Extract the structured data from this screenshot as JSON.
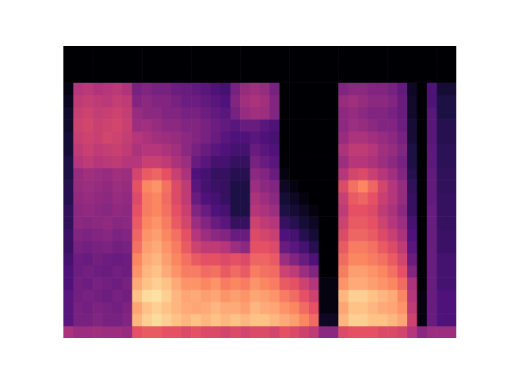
{
  "chart_data": {
    "type": "heatmap",
    "tick_labels": false,
    "xlim": [
      0,
      40
    ],
    "ylim": [
      0,
      24
    ],
    "zlim": [
      -80,
      0
    ],
    "values": [
      [
        -42,
        -45,
        -45,
        -44,
        -45,
        -45,
        -46,
        -30,
        -28,
        -28,
        -30,
        -30,
        -32,
        -30,
        -32,
        -32,
        -34,
        -32,
        -34,
        -32,
        -32,
        -34,
        -30,
        -32,
        -35,
        -38,
        -48,
        -48,
        -32,
        -30,
        -30,
        -30,
        -32,
        -32,
        -34,
        -40,
        -48,
        -45,
        -45,
        -45
      ],
      [
        -58,
        -52,
        -52,
        -50,
        -52,
        -52,
        -50,
        -12,
        -8,
        -6,
        -8,
        -10,
        -12,
        -10,
        -12,
        -10,
        -12,
        -10,
        -12,
        -10,
        -10,
        -12,
        -14,
        -16,
        -20,
        -25,
        -75,
        -75,
        -12,
        -8,
        -8,
        -10,
        -10,
        -12,
        -15,
        -35,
        -78,
        -55,
        -60,
        -60
      ],
      [
        -58,
        -52,
        -53,
        -51,
        -52,
        -53,
        -51,
        -15,
        -10,
        -8,
        -10,
        -12,
        -14,
        -15,
        -14,
        -12,
        -14,
        -14,
        -16,
        -12,
        -14,
        -15,
        -18,
        -20,
        -25,
        -30,
        -78,
        -78,
        -15,
        -10,
        -10,
        -12,
        -14,
        -15,
        -18,
        -38,
        -78,
        -55,
        -60,
        -60
      ],
      [
        -58,
        -53,
        -52,
        -53,
        -54,
        -52,
        -53,
        -10,
        -6,
        -5,
        -8,
        -12,
        -15,
        -14,
        -16,
        -15,
        -18,
        -16,
        -18,
        -15,
        -16,
        -18,
        -22,
        -25,
        -30,
        -35,
        -78,
        -78,
        -12,
        -8,
        -8,
        -10,
        -12,
        -14,
        -20,
        -40,
        -78,
        -55,
        -60,
        -60
      ],
      [
        -60,
        -53,
        -54,
        -52,
        -53,
        -54,
        -52,
        -14,
        -10,
        -8,
        -10,
        -14,
        -18,
        -18,
        -20,
        -18,
        -22,
        -20,
        -22,
        -18,
        -20,
        -22,
        -28,
        -30,
        -35,
        -40,
        -78,
        -78,
        -18,
        -14,
        -14,
        -16,
        -18,
        -20,
        -25,
        -42,
        -80,
        -55,
        -62,
        -62
      ],
      [
        -60,
        -54,
        -53,
        -54,
        -55,
        -53,
        -54,
        -18,
        -12,
        -10,
        -14,
        -18,
        -22,
        -22,
        -25,
        -24,
        -28,
        -25,
        -28,
        -22,
        -24,
        -25,
        -35,
        -38,
        -45,
        -50,
        -80,
        -80,
        -22,
        -16,
        -16,
        -18,
        -20,
        -24,
        -30,
        -50,
        -80,
        -55,
        -62,
        -62
      ],
      [
        -62,
        -54,
        -55,
        -53,
        -54,
        -55,
        -54,
        -20,
        -14,
        -12,
        -16,
        -20,
        -24,
        -28,
        -30,
        -30,
        -32,
        -30,
        -32,
        -26,
        -26,
        -28,
        -45,
        -50,
        -55,
        -60,
        -80,
        -80,
        -25,
        -20,
        -20,
        -22,
        -24,
        -28,
        -34,
        -55,
        -80,
        -55,
        -62,
        -62
      ],
      [
        -64,
        -52,
        -53,
        -52,
        -51,
        -53,
        -52,
        -24,
        -16,
        -14,
        -18,
        -22,
        -28,
        -35,
        -38,
        -38,
        -40,
        -45,
        -48,
        -30,
        -30,
        -32,
        -55,
        -58,
        -62,
        -68,
        -80,
        -80,
        -28,
        -22,
        -22,
        -24,
        -28,
        -32,
        -38,
        -58,
        -80,
        -55,
        -64,
        -64
      ],
      [
        -64,
        -50,
        -51,
        -50,
        -49,
        -51,
        -50,
        -26,
        -18,
        -16,
        -20,
        -24,
        -30,
        -40,
        -45,
        -48,
        -50,
        -55,
        -55,
        -32,
        -34,
        -36,
        -60,
        -62,
        -68,
        -72,
        -80,
        -80,
        -32,
        -26,
        -26,
        -28,
        -32,
        -36,
        -42,
        -60,
        -80,
        -55,
        -64,
        -64
      ],
      [
        -66,
        -48,
        -49,
        -48,
        -47,
        -49,
        -48,
        -28,
        -20,
        -18,
        -22,
        -28,
        -34,
        -45,
        -50,
        -55,
        -58,
        -65,
        -65,
        -35,
        -38,
        -40,
        -65,
        -68,
        -72,
        -75,
        -80,
        -80,
        -35,
        -28,
        -28,
        -30,
        -35,
        -40,
        -45,
        -62,
        -80,
        -55,
        -65,
        -65
      ],
      [
        -66,
        -48,
        -47,
        -48,
        -49,
        -47,
        -48,
        -30,
        -22,
        -20,
        -24,
        -30,
        -36,
        -50,
        -55,
        -60,
        -62,
        -70,
        -70,
        -40,
        -42,
        -45,
        -70,
        -72,
        -75,
        -78,
        -80,
        -80,
        -38,
        -30,
        -30,
        -32,
        -38,
        -42,
        -48,
        -65,
        -80,
        -55,
        -65,
        -65
      ],
      [
        -68,
        -47,
        -46,
        -47,
        -48,
        -46,
        -47,
        -32,
        -22,
        -20,
        -25,
        -32,
        -38,
        -55,
        -60,
        -62,
        -65,
        -70,
        -70,
        -42,
        -45,
        -48,
        -72,
        -75,
        -78,
        -80,
        -80,
        -80,
        -36,
        -28,
        -26,
        -30,
        -36,
        -40,
        -46,
        -65,
        -80,
        -56,
        -65,
        -65
      ],
      [
        -68,
        -46,
        -45,
        -46,
        -47,
        -45,
        -46,
        -30,
        -20,
        -18,
        -24,
        -32,
        -38,
        -58,
        -62,
        -64,
        -65,
        -70,
        -70,
        -45,
        -48,
        -50,
        -75,
        -78,
        -80,
        -80,
        -80,
        -80,
        -32,
        -24,
        -20,
        -26,
        -34,
        -40,
        -46,
        -66,
        -80,
        -56,
        -66,
        -66
      ],
      [
        -70,
        -46,
        -44,
        -45,
        -46,
        -44,
        -45,
        -34,
        -28,
        -26,
        -30,
        -36,
        -42,
        -60,
        -62,
        -65,
        -65,
        -68,
        -68,
        -48,
        -50,
        -55,
        -78,
        -80,
        -80,
        -80,
        -80,
        -80,
        -40,
        -34,
        -32,
        -36,
        -40,
        -44,
        -50,
        -68,
        -80,
        -56,
        -66,
        -66
      ],
      [
        -70,
        -40,
        -38,
        -40,
        -39,
        -38,
        -40,
        -40,
        -36,
        -36,
        -38,
        -42,
        -45,
        -55,
        -58,
        -62,
        -62,
        -65,
        -65,
        -52,
        -55,
        -58,
        -80,
        -80,
        -80,
        -80,
        -80,
        -80,
        -45,
        -40,
        -40,
        -42,
        -45,
        -48,
        -52,
        -70,
        -80,
        -57,
        -67,
        -67
      ],
      [
        -72,
        -38,
        -36,
        -38,
        -37,
        -36,
        -38,
        -42,
        -40,
        -40,
        -42,
        -44,
        -48,
        -52,
        -55,
        -58,
        -60,
        -62,
        -62,
        -55,
        -58,
        -60,
        -80,
        -80,
        -80,
        -80,
        -80,
        -80,
        -42,
        -38,
        -38,
        -40,
        -44,
        -46,
        -50,
        -70,
        -80,
        -57,
        -67,
        -67
      ],
      [
        -72,
        -36,
        -35,
        -36,
        -34,
        -35,
        -37,
        -40,
        -42,
        -44,
        -45,
        -46,
        -48,
        -50,
        -52,
        -55,
        -58,
        -60,
        -60,
        -58,
        -60,
        -62,
        -80,
        -80,
        -80,
        -80,
        -80,
        -80,
        -46,
        -42,
        -42,
        -44,
        -46,
        -48,
        -52,
        -72,
        -80,
        -58,
        -68,
        -68
      ],
      [
        -74,
        -35,
        -34,
        -36,
        -35,
        -34,
        -36,
        -45,
        -44,
        -46,
        -48,
        -48,
        -50,
        -50,
        -52,
        -54,
        -56,
        -58,
        -55,
        -55,
        -58,
        -60,
        -80,
        -80,
        -80,
        -80,
        -80,
        -80,
        -48,
        -45,
        -46,
        -48,
        -50,
        -50,
        -54,
        -72,
        -80,
        -58,
        -68,
        -68
      ],
      [
        -74,
        -36,
        -35,
        -37,
        -36,
        -35,
        -37,
        -46,
        -48,
        -48,
        -50,
        -50,
        -52,
        -52,
        -54,
        -56,
        -58,
        -52,
        -46,
        -44,
        -45,
        -50,
        -80,
        -80,
        -80,
        -80,
        -80,
        -80,
        -48,
        -46,
        -48,
        -50,
        -50,
        -52,
        -55,
        -74,
        -80,
        -58,
        -70,
        -70
      ],
      [
        -76,
        -38,
        -37,
        -38,
        -39,
        -37,
        -38,
        -50,
        -48,
        -50,
        -50,
        -52,
        -54,
        -54,
        -56,
        -58,
        -60,
        -50,
        -44,
        -42,
        -44,
        -50,
        -80,
        -80,
        -80,
        -80,
        -80,
        -80,
        -46,
        -44,
        -46,
        -48,
        -48,
        -50,
        -55,
        -74,
        -80,
        -60,
        -70,
        -70
      ],
      [
        -78,
        -40,
        -39,
        -41,
        -40,
        -39,
        -41,
        -52,
        -50,
        -52,
        -52,
        -54,
        -55,
        -56,
        -58,
        -60,
        -62,
        -52,
        -46,
        -44,
        -46,
        -52,
        -80,
        -80,
        -80,
        -80,
        -80,
        -80,
        -50,
        -48,
        -48,
        -50,
        -50,
        -52,
        -56,
        -75,
        -80,
        -60,
        -72,
        -72
      ],
      [
        -80,
        -80,
        -80,
        -80,
        -80,
        -80,
        -80,
        -80,
        -80,
        -80,
        -80,
        -80,
        -80,
        -80,
        -80,
        -80,
        -80,
        -80,
        -80,
        -80,
        -80,
        -80,
        -80,
        -80,
        -80,
        -80,
        -80,
        -80,
        -80,
        -80,
        -80,
        -80,
        -80,
        -80,
        -80,
        -80,
        -80,
        -80,
        -80,
        -80
      ],
      [
        -80,
        -80,
        -80,
        -80,
        -80,
        -80,
        -80,
        -80,
        -80,
        -80,
        -80,
        -80,
        -80,
        -80,
        -80,
        -80,
        -80,
        -80,
        -80,
        -80,
        -80,
        -80,
        -80,
        -80,
        -80,
        -80,
        -80,
        -80,
        -80,
        -80,
        -80,
        -80,
        -80,
        -80,
        -80,
        -80,
        -80,
        -80,
        -80,
        -80
      ],
      [
        -80,
        -80,
        -80,
        -80,
        -80,
        -80,
        -80,
        -80,
        -80,
        -80,
        -80,
        -80,
        -80,
        -80,
        -80,
        -80,
        -80,
        -80,
        -80,
        -80,
        -80,
        -80,
        -80,
        -80,
        -80,
        -80,
        -80,
        -80,
        -80,
        -80,
        -80,
        -80,
        -80,
        -80,
        -80,
        -80,
        -80,
        -80,
        -80,
        -80
      ]
    ]
  }
}
